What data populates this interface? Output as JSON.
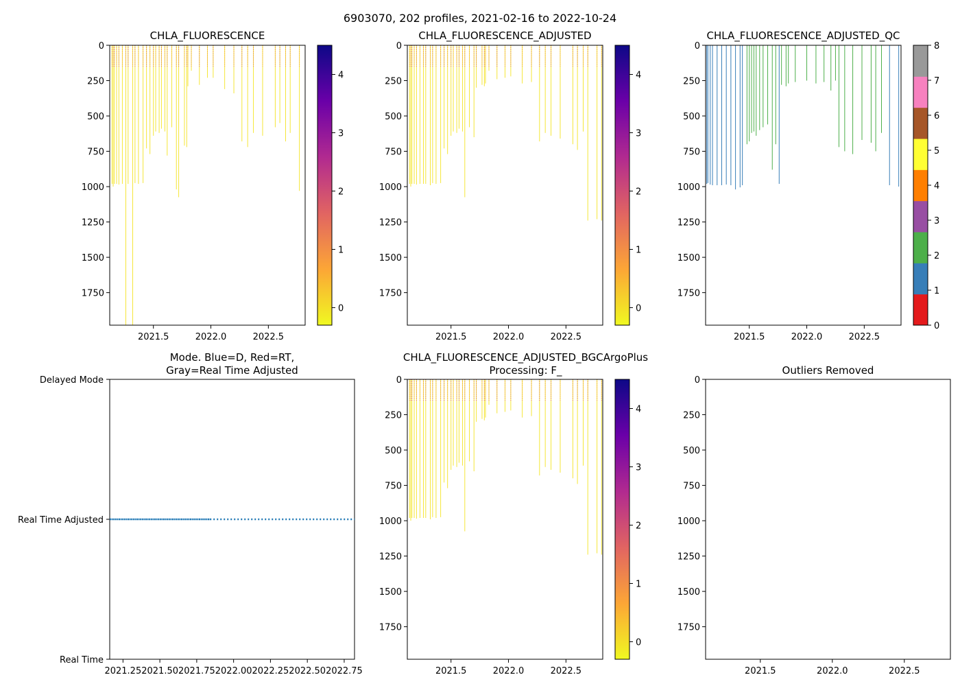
{
  "figure_title": "6903070, 202 profiles, 2021-02-16 to 2022-10-24",
  "colors": {
    "depth_line": "#1f77b4",
    "plasma_stops": [
      "#f0f921",
      "#fca636",
      "#e16462",
      "#b12a90",
      "#6a00a8",
      "#0d0887"
    ],
    "qc_colors": [
      "#e41a1c",
      "#377eb8",
      "#4daf4a",
      "#984ea3",
      "#ff7f00",
      "#ffff33",
      "#a65628",
      "#f781bf",
      "#999999"
    ]
  },
  "chart_data": [
    {
      "id": "chla",
      "type": "heatmap",
      "title": "CHLA_FLUORESCENCE",
      "xlim": [
        2021.12,
        2022.82
      ],
      "ylim": [
        1980,
        0
      ],
      "xticks": [
        2021.5,
        2022.0,
        2022.5
      ],
      "xtick_labels": [
        "2021.5",
        "2022.0",
        "2022.5"
      ],
      "yticks": [
        0,
        250,
        500,
        750,
        1000,
        1250,
        1500,
        1750
      ],
      "ytick_labels": [
        "0",
        "250",
        "500",
        "750",
        "1000",
        "1250",
        "1500",
        "1750"
      ],
      "colorbar": {
        "range": [
          -0.3,
          4.5
        ],
        "ticks": [
          0,
          1,
          2,
          3,
          4
        ],
        "tick_labels": [
          "0",
          "1",
          "2",
          "3",
          "4"
        ]
      },
      "profiles_date": [
        2021.14,
        2021.15,
        2021.16,
        2021.18,
        2021.2,
        2021.23,
        2021.26,
        2021.28,
        2021.32,
        2021.34,
        2021.37,
        2021.41,
        2021.44,
        2021.47,
        2021.5,
        2021.52,
        2021.55,
        2021.57,
        2021.6,
        2021.62,
        2021.66,
        2021.7,
        2021.72,
        2021.77,
        2021.79,
        2021.8,
        2021.83,
        2021.9,
        2021.97,
        2022.02,
        2022.12,
        2022.2,
        2022.27,
        2022.32,
        2022.37,
        2022.45,
        2022.56,
        2022.6,
        2022.65,
        2022.69,
        2022.77
      ],
      "profiles_max_depth": [
        980,
        1000,
        980,
        980,
        985,
        980,
        1980,
        980,
        1980,
        975,
        980,
        975,
        730,
        770,
        640,
        610,
        620,
        590,
        610,
        780,
        580,
        1020,
        1075,
        710,
        720,
        290,
        180,
        280,
        230,
        230,
        310,
        340,
        680,
        720,
        620,
        640,
        580,
        550,
        680,
        620,
        1030
      ]
    },
    {
      "id": "chla_adj",
      "type": "heatmap",
      "title": "CHLA_FLUORESCENCE_ADJUSTED",
      "xlim": [
        2021.12,
        2022.82
      ],
      "ylim": [
        1980,
        0
      ],
      "xticks": [
        2021.5,
        2022.0,
        2022.5
      ],
      "xtick_labels": [
        "2021.5",
        "2022.0",
        "2022.5"
      ],
      "yticks": [
        0,
        250,
        500,
        750,
        1000,
        1250,
        1500,
        1750
      ],
      "ytick_labels": [
        "0",
        "250",
        "500",
        "750",
        "1000",
        "1250",
        "1500",
        "1750"
      ],
      "colorbar": {
        "range": [
          -0.3,
          4.5
        ],
        "ticks": [
          0,
          1,
          2,
          3,
          4
        ],
        "tick_labels": [
          "0",
          "1",
          "2",
          "3",
          "4"
        ]
      },
      "profiles_date": [
        2021.14,
        2021.15,
        2021.16,
        2021.18,
        2021.2,
        2021.23,
        2021.26,
        2021.28,
        2021.32,
        2021.34,
        2021.37,
        2021.41,
        2021.44,
        2021.47,
        2021.5,
        2021.52,
        2021.55,
        2021.57,
        2021.6,
        2021.62,
        2021.66,
        2021.7,
        2021.72,
        2021.77,
        2021.79,
        2021.8,
        2021.83,
        2021.9,
        2021.97,
        2022.02,
        2022.12,
        2022.2,
        2022.27,
        2022.32,
        2022.37,
        2022.45,
        2022.56,
        2022.6,
        2022.65,
        2022.69,
        2022.77,
        2022.81
      ],
      "profiles_max_depth": [
        980,
        1000,
        980,
        980,
        985,
        980,
        980,
        980,
        990,
        975,
        980,
        975,
        730,
        770,
        640,
        610,
        620,
        590,
        610,
        1075,
        580,
        650,
        300,
        280,
        290,
        270,
        180,
        240,
        230,
        220,
        270,
        260,
        680,
        620,
        640,
        660,
        700,
        740,
        610,
        1240,
        1230,
        1240
      ]
    },
    {
      "id": "chla_adj_qc",
      "type": "heatmap",
      "title": "CHLA_FLUORESCENCE_ADJUSTED_QC",
      "xlim": [
        2021.12,
        2022.82
      ],
      "ylim": [
        1980,
        0
      ],
      "xticks": [
        2021.5,
        2022.0,
        2022.5
      ],
      "xtick_labels": [
        "2021.5",
        "2022.0",
        "2022.5"
      ],
      "yticks": [
        0,
        250,
        500,
        750,
        1000,
        1250,
        1500,
        1750
      ],
      "ytick_labels": [
        "0",
        "250",
        "500",
        "750",
        "1000",
        "1250",
        "1500",
        "1750"
      ],
      "colorbar": {
        "range": [
          0,
          8
        ],
        "ticks": [
          0,
          1,
          2,
          3,
          4,
          5,
          6,
          7,
          8
        ],
        "tick_labels": [
          "0",
          "1",
          "2",
          "3",
          "4",
          "5",
          "6",
          "7",
          "8"
        ]
      },
      "profiles_date": [
        2021.13,
        2021.14,
        2021.16,
        2021.18,
        2021.22,
        2021.26,
        2021.3,
        2021.34,
        2021.38,
        2021.42,
        2021.44,
        2021.48,
        2021.5,
        2021.52,
        2021.54,
        2021.56,
        2021.59,
        2021.62,
        2021.66,
        2021.7,
        2021.73,
        2021.76,
        2021.78,
        2021.82,
        2021.84,
        2021.9,
        2022.0,
        2022.08,
        2022.15,
        2022.21,
        2022.25,
        2022.28,
        2022.33,
        2022.4,
        2022.48,
        2022.56,
        2022.6,
        2022.65,
        2022.72,
        2022.8
      ],
      "profiles_max_depth": [
        980,
        975,
        985,
        990,
        990,
        990,
        985,
        990,
        1020,
        1005,
        990,
        700,
        680,
        620,
        610,
        640,
        600,
        580,
        560,
        880,
        700,
        980,
        280,
        290,
        270,
        260,
        250,
        270,
        260,
        320,
        250,
        720,
        750,
        770,
        670,
        690,
        750,
        620,
        990,
        1000
      ],
      "profiles_qc": [
        1,
        1,
        1,
        1,
        1,
        1,
        1,
        1,
        1,
        1,
        1,
        2,
        2,
        2,
        2,
        2,
        2,
        2,
        2,
        2,
        2,
        1,
        2,
        2,
        2,
        2,
        2,
        2,
        2,
        2,
        2,
        2,
        2,
        2,
        2,
        2,
        2,
        2,
        1,
        1
      ]
    },
    {
      "id": "mode",
      "type": "scatter",
      "title_line1": "Mode. Blue=D, Red=RT,",
      "title_line2": "Gray=Real Time Adjusted",
      "xlim": [
        2021.16,
        2022.82
      ],
      "xticks": [
        2021.25,
        2021.5,
        2021.75,
        2022.0,
        2022.25,
        2022.5,
        2022.75
      ],
      "xtick_labels": [
        "2021.25",
        "2021.50",
        "2021.75",
        "2022.00",
        "2022.25",
        "2022.50",
        "2022.75"
      ],
      "ycategories": [
        "Delayed Mode",
        "Real Time Adjusted",
        "Real Time"
      ],
      "dense_range": [
        2021.16,
        2021.84
      ],
      "sparse_range": [
        2021.84,
        2022.82
      ],
      "point_mode": "Real Time Adjusted"
    },
    {
      "id": "bgc",
      "type": "heatmap",
      "title_line1": "CHLA_FLUORESCENCE_ADJUSTED_BGCArgoPlus",
      "title_line2": "Processing: F_",
      "xlim": [
        2021.12,
        2022.82
      ],
      "ylim": [
        1980,
        0
      ],
      "xticks": [
        2021.5,
        2022.0,
        2022.5
      ],
      "xtick_labels": [
        "2021.5",
        "2022.0",
        "2022.5"
      ],
      "yticks": [
        0,
        250,
        500,
        750,
        1000,
        1250,
        1500,
        1750
      ],
      "ytick_labels": [
        "0",
        "250",
        "500",
        "750",
        "1000",
        "1250",
        "1500",
        "1750"
      ],
      "colorbar": {
        "range": [
          -0.3,
          4.5
        ],
        "ticks": [
          0,
          1,
          2,
          3,
          4
        ],
        "tick_labels": [
          "0",
          "1",
          "2",
          "3",
          "4"
        ]
      },
      "profiles_date": [
        2021.14,
        2021.15,
        2021.16,
        2021.18,
        2021.2,
        2021.23,
        2021.26,
        2021.28,
        2021.32,
        2021.34,
        2021.37,
        2021.41,
        2021.44,
        2021.47,
        2021.5,
        2021.52,
        2021.55,
        2021.57,
        2021.6,
        2021.62,
        2021.66,
        2021.7,
        2021.72,
        2021.77,
        2021.79,
        2021.8,
        2021.83,
        2021.9,
        2021.97,
        2022.02,
        2022.12,
        2022.2,
        2022.27,
        2022.32,
        2022.37,
        2022.45,
        2022.56,
        2022.6,
        2022.65,
        2022.69,
        2022.77,
        2022.81
      ],
      "profiles_max_depth": [
        980,
        1000,
        980,
        980,
        985,
        980,
        980,
        980,
        990,
        975,
        980,
        975,
        730,
        770,
        640,
        610,
        620,
        590,
        610,
        1075,
        580,
        650,
        300,
        280,
        290,
        270,
        180,
        240,
        230,
        220,
        270,
        260,
        680,
        620,
        640,
        660,
        700,
        740,
        610,
        1240,
        1230,
        1240
      ]
    },
    {
      "id": "outliers",
      "type": "scatter",
      "title": "Outliers Removed",
      "xlim": [
        2021.12,
        2022.82
      ],
      "ylim": [
        1980,
        0
      ],
      "xticks": [
        2021.5,
        2022.0,
        2022.5
      ],
      "xtick_labels": [
        "2021.5",
        "2022.0",
        "2022.5"
      ],
      "yticks": [
        0,
        250,
        500,
        750,
        1000,
        1250,
        1500,
        1750
      ],
      "ytick_labels": [
        "0",
        "250",
        "500",
        "750",
        "1000",
        "1250",
        "1500",
        "1750"
      ],
      "points": []
    }
  ]
}
